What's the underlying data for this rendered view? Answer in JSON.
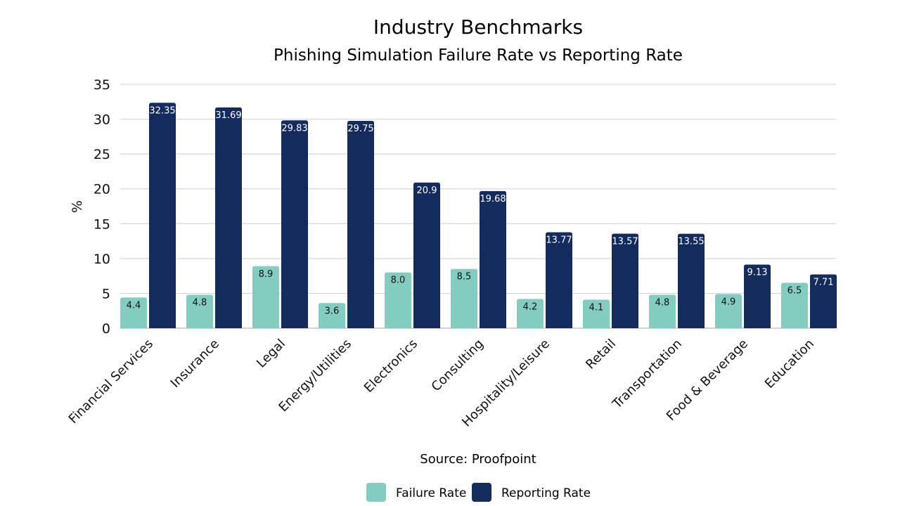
{
  "chart_data": {
    "type": "bar",
    "title": "Industry Benchmarks",
    "subtitle": "Phishing Simulation Failure Rate vs Reporting Rate",
    "xlabel": "",
    "ylabel": "%",
    "ylim": [
      0,
      35
    ],
    "yticks": [
      0,
      5,
      10,
      15,
      20,
      25,
      30,
      35
    ],
    "grid": true,
    "legend_position": "bottom",
    "source": "Source: Proofpoint",
    "categories": [
      "Financial Services",
      "Insurance",
      "Legal",
      "Energy/Utilities",
      "Electronics",
      "Consulting",
      "Hospitality/Leisure",
      "Retail",
      "Transportation",
      "Food & Beverage",
      "Education"
    ],
    "series": [
      {
        "name": "Failure Rate",
        "color": "#82CDBF",
        "label_color": "#111111",
        "values": [
          4.4,
          4.8,
          8.9,
          3.6,
          8.0,
          8.5,
          4.2,
          4.1,
          4.8,
          4.9,
          6.5
        ],
        "labels": [
          "4.4",
          "4.8",
          "8.9",
          "3.6",
          "8.0",
          "8.5",
          "4.2",
          "4.1",
          "4.8",
          "4.9",
          "6.5"
        ]
      },
      {
        "name": "Reporting Rate",
        "color": "#142B5E",
        "label_color": "#FFFFFF",
        "values": [
          32.35,
          31.69,
          29.83,
          29.75,
          20.9,
          19.68,
          13.77,
          13.57,
          13.55,
          9.13,
          7.71
        ],
        "labels": [
          "32.35",
          "31.69",
          "29.83",
          "29.75",
          "20.9",
          "19.68",
          "13.77",
          "13.57",
          "13.55",
          "9.13",
          "7.71"
        ]
      }
    ]
  }
}
